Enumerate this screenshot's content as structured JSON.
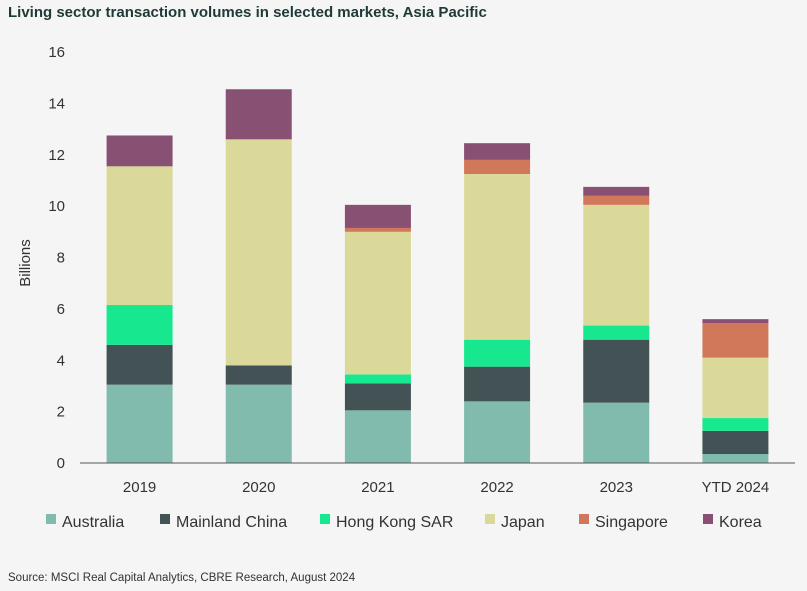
{
  "title": "Living sector transaction volumes in selected markets, Asia Pacific",
  "source": "Source: MSCI Real Capital Analytics, CBRE Research, August 2024",
  "chart_data": {
    "type": "bar",
    "stacked": true,
    "title": "Living sector transaction volumes in selected markets, Asia Pacific",
    "xlabel": "",
    "ylabel": "Billions",
    "ylim": [
      0,
      16
    ],
    "yticks": [
      0,
      2,
      4,
      6,
      8,
      10,
      12,
      14,
      16
    ],
    "grid": false,
    "legend": "bottom",
    "categories": [
      "2019",
      "2020",
      "2021",
      "2022",
      "2023",
      "YTD 2024"
    ],
    "series": [
      {
        "name": "Australia",
        "color": "#80bbad",
        "values": [
          3.05,
          3.05,
          2.05,
          2.4,
          2.35,
          0.35
        ]
      },
      {
        "name": "Mainland China",
        "color": "#435254",
        "values": [
          1.55,
          0.75,
          1.05,
          1.35,
          2.45,
          0.9
        ]
      },
      {
        "name": "Hong Kong SAR",
        "color": "#17e88f",
        "values": [
          1.55,
          0.0,
          0.35,
          1.05,
          0.55,
          0.5
        ]
      },
      {
        "name": "Japan",
        "color": "#dbd99a",
        "values": [
          5.4,
          8.8,
          5.55,
          6.45,
          4.7,
          2.35
        ]
      },
      {
        "name": "Singapore",
        "color": "#d2785a",
        "values": [
          0.0,
          0.0,
          0.15,
          0.55,
          0.35,
          1.35
        ]
      },
      {
        "name": "Korea",
        "color": "#885073",
        "values": [
          1.2,
          1.95,
          0.9,
          0.65,
          0.35,
          0.15
        ]
      }
    ]
  }
}
